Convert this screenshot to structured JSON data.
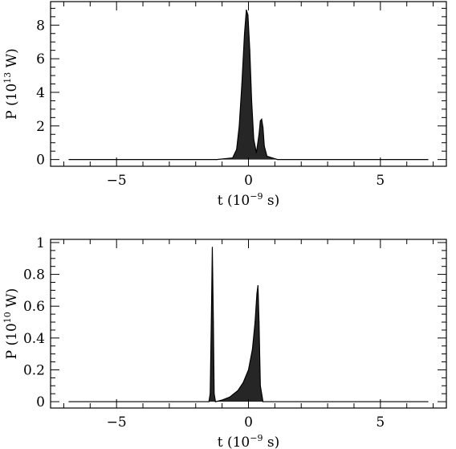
{
  "chart_data": [
    {
      "type": "line",
      "xlabel_parts": [
        "t  (10",
        "−9",
        " s)"
      ],
      "ylabel_parts": [
        "P  (10",
        "13",
        " W)"
      ],
      "xlim": [
        -7.5,
        7.5
      ],
      "ylim": [
        -0.4,
        9.4
      ],
      "x_ticks": [
        -5,
        0,
        5
      ],
      "x_tick_labels": [
        "−5",
        "0",
        "5"
      ],
      "y_ticks": [
        0,
        2,
        4,
        6,
        8
      ],
      "y_tick_labels": [
        "0",
        "2",
        "4",
        "6",
        "8"
      ],
      "grid": false,
      "series": [
        {
          "x": [
            -6.8,
            -1.2,
            -0.9,
            -0.6,
            -0.45,
            -0.35,
            -0.25,
            -0.15,
            -0.08,
            -0.02,
            0.05,
            0.12,
            0.2,
            0.3,
            0.4,
            0.45,
            0.5,
            0.55,
            0.6,
            0.7,
            0.9,
            1.1,
            6.8
          ],
          "y": [
            0,
            0,
            0.05,
            0.1,
            0.6,
            2.0,
            4.5,
            7.5,
            8.9,
            8.6,
            6.5,
            3.5,
            1.2,
            0.4,
            1.5,
            2.3,
            2.4,
            1.9,
            0.8,
            0.2,
            0.1,
            0,
            0
          ]
        }
      ]
    },
    {
      "type": "line",
      "xlabel_parts": [
        "t  (10",
        "−9",
        " s)"
      ],
      "ylabel_parts": [
        "P  (10",
        "10",
        " W)"
      ],
      "xlim": [
        -7.5,
        7.5
      ],
      "ylim": [
        -0.04,
        1.02
      ],
      "x_ticks": [
        -5,
        0,
        5
      ],
      "x_tick_labels": [
        "−5",
        "0",
        "5"
      ],
      "y_ticks": [
        0,
        0.2,
        0.4,
        0.6,
        0.8,
        1
      ],
      "y_tick_labels": [
        "0",
        "0.2",
        "0.4",
        "0.6",
        "0.8",
        "1"
      ],
      "grid": false,
      "series": [
        {
          "x": [
            -6.8,
            -1.5,
            -1.45,
            -1.4,
            -1.37,
            -1.33,
            -1.3,
            -1.25,
            -1.0,
            -0.7,
            -0.4,
            -0.2,
            0.0,
            0.15,
            0.25,
            0.32,
            0.36,
            0.4,
            0.45,
            0.55,
            6.8
          ],
          "y": [
            0,
            0,
            0.05,
            0.6,
            0.97,
            0.5,
            0.05,
            0,
            0.01,
            0.03,
            0.07,
            0.12,
            0.2,
            0.33,
            0.5,
            0.68,
            0.73,
            0.5,
            0.1,
            0,
            0
          ]
        }
      ]
    }
  ]
}
